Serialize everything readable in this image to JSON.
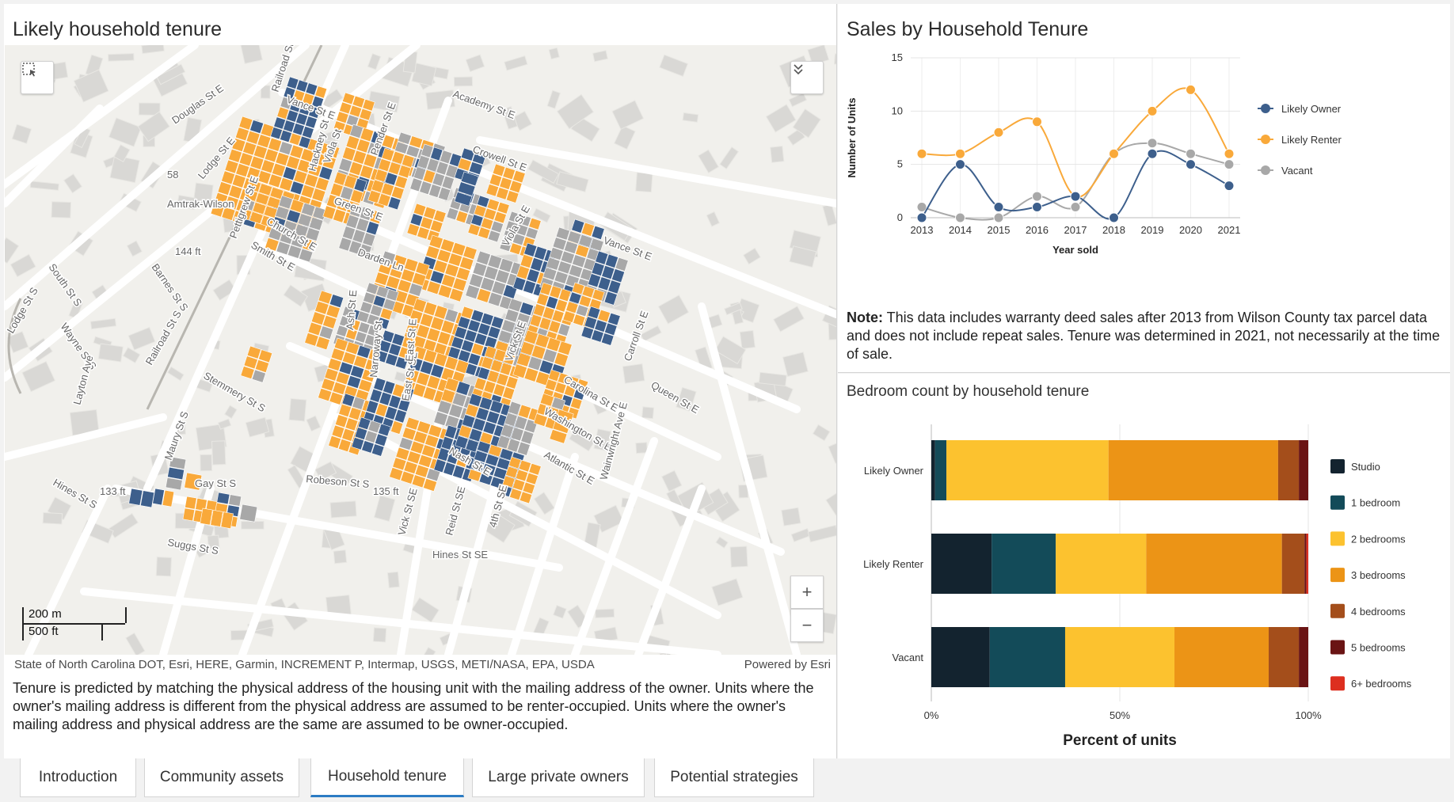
{
  "map_panel": {
    "title": "Likely household tenure",
    "attribution": "State of North Carolina DOT, Esri, HERE, Garmin, INCREMENT P, Intermap, USGS, METI/NASA, EPA, USDA",
    "powered_by": "Powered by Esri",
    "scale_metric": "200 m",
    "scale_imperial": "500 ft",
    "zoom_in": "+",
    "zoom_out": "−",
    "collapse_icon": "chevron-double-down",
    "select_icon": "select-region",
    "street_labels": [
      "Railroad St",
      "Vance St E",
      "Academy St E",
      "Douglas St E",
      "Lodge St E",
      "Hackney St",
      "Viola St",
      "Pender St E",
      "Crowell St E",
      "Green St E",
      "Pettigrew St E",
      "Church St E",
      "Smith St E",
      "Darden Ln",
      "Vance St E",
      "Amtrak-Wilson",
      "144 ft",
      "South St S",
      "Barnes St S",
      "Lodge St S",
      "Wayne St S",
      "Railroad St S",
      "Stemmery St S",
      "Layton Ave",
      "Maury St S",
      "Hines St S",
      "133 ft",
      "Gay St S",
      "Robeson St S",
      "135 ft",
      "East St SE",
      "Vick St SE",
      "Reid St SE",
      "4th St SE",
      "Nash St E",
      "Atlantic St E",
      "Washington St E",
      "Carolina St E",
      "Queen St E",
      "Carroll St E",
      "Wainwright Ave E",
      "Ash St E",
      "Narroway St",
      "East St E",
      "Vick St E",
      "Suggs St S",
      "Hines St SE",
      "Viola St E",
      "58"
    ],
    "note": "Tenure is predicted by matching the physical address of the housing unit with the mailing address of the owner. Units where the owner's mailing address is different from the physical address are assumed to be renter-occupied. Units where the owner's mailing address and physical address are the same are assumed to be owner-occupied."
  },
  "sales_panel": {
    "title": "Sales by Household Tenure",
    "note_label": "Note:",
    "note_text": " This data includes warranty deed sales after 2013 from Wilson County tax parcel data and does not include repeat sales. Tenure was determined in 2021, not necessarily at the time of sale."
  },
  "bedroom_panel": {
    "title": "Bedroom count by household tenure"
  },
  "colors": {
    "owner": "#3d5f8c",
    "renter": "#f9a93a",
    "vacant": "#a8a8a8",
    "studio": "#13232f",
    "bed1": "#134b59",
    "bed2": "#fcc22f",
    "bed3": "#ec9416",
    "bed4": "#a44e1b",
    "bed5": "#6a1414",
    "bed6": "#dd2f1f"
  },
  "chart_data": [
    {
      "type": "line",
      "xlabel": "Year sold",
      "ylabel": "Number of Units",
      "ylim": [
        0,
        15
      ],
      "yticks": [
        0,
        5,
        10,
        15
      ],
      "categories": [
        "2013",
        "2014",
        "2015",
        "2016",
        "2017",
        "2018",
        "2019",
        "2020",
        "2021"
      ],
      "legend_position": "right",
      "series": [
        {
          "name": "Likely Owner",
          "values": [
            0,
            5,
            1,
            1,
            2,
            0,
            6,
            5,
            3
          ],
          "color": "#3d5f8c"
        },
        {
          "name": "Likely Renter",
          "values": [
            6,
            6,
            8,
            9,
            2,
            6,
            10,
            12,
            6
          ],
          "color": "#f9a93a"
        },
        {
          "name": "Vacant",
          "values": [
            1,
            0,
            0,
            2,
            1,
            6,
            7,
            6,
            5
          ],
          "color": "#a8a8a8"
        }
      ]
    },
    {
      "type": "bar",
      "orientation": "horizontal",
      "stacked": "percent",
      "xlabel": "Percent of units",
      "xticks": [
        "0%",
        "50%",
        "100%"
      ],
      "categories": [
        "Likely Owner",
        "Likely Renter",
        "Vacant"
      ],
      "legend_position": "right",
      "series": [
        {
          "name": "Studio",
          "values": [
            1,
            16,
            15.5
          ],
          "color": "#13232f"
        },
        {
          "name": "1 bedroom",
          "values": [
            3,
            17,
            20
          ],
          "color": "#134b59"
        },
        {
          "name": "2 bedrooms",
          "values": [
            43,
            24,
            29
          ],
          "color": "#fcc22f"
        },
        {
          "name": "3 bedrooms",
          "values": [
            45,
            36,
            25
          ],
          "color": "#ec9416"
        },
        {
          "name": "4 bedrooms",
          "values": [
            5.5,
            6,
            8
          ],
          "color": "#a44e1b"
        },
        {
          "name": "5 bedrooms",
          "values": [
            2.5,
            0.5,
            2.5
          ],
          "color": "#6a1414"
        },
        {
          "name": "6+ bedrooms",
          "values": [
            0,
            0.5,
            0
          ],
          "color": "#dd2f1f"
        }
      ]
    }
  ],
  "tabs": [
    {
      "label": "Introduction",
      "active": false
    },
    {
      "label": "Community assets",
      "active": false
    },
    {
      "label": "Household tenure",
      "active": true
    },
    {
      "label": "Large private owners",
      "active": false
    },
    {
      "label": "Potential strategies",
      "active": false
    }
  ]
}
